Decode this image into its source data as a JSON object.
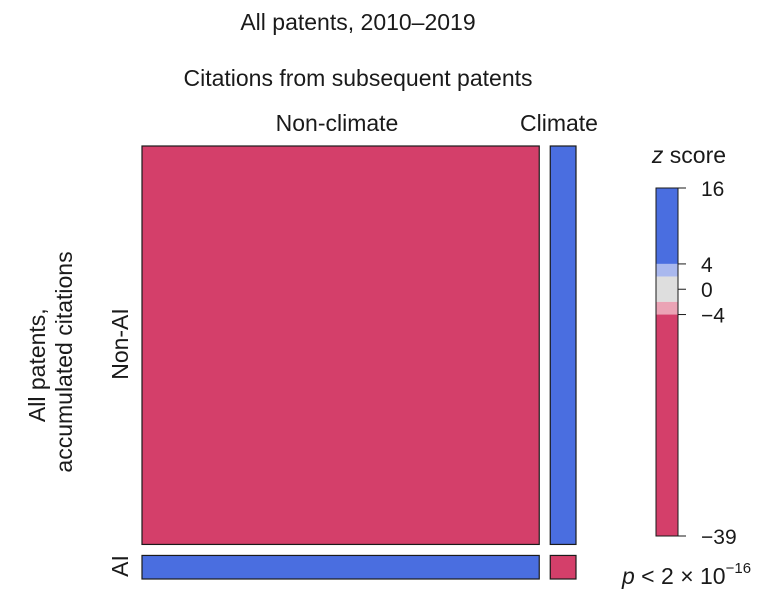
{
  "chart_data": {
    "type": "heatmap",
    "title": "All patents, 2010–2019",
    "x_title": "Citations from subsequent patents",
    "y_title_lines": [
      "All patents,",
      "accumulated citations"
    ],
    "x_categories": [
      "Non-climate",
      "Climate"
    ],
    "y_categories": [
      "Non-AI",
      "AI"
    ],
    "cells": [
      {
        "row": "Non-AI",
        "col": "Non-climate",
        "sign": "negative"
      },
      {
        "row": "Non-AI",
        "col": "Climate",
        "sign": "positive"
      },
      {
        "row": "AI",
        "col": "Non-climate",
        "sign": "positive"
      },
      {
        "row": "AI",
        "col": "Climate",
        "sign": "negative"
      }
    ],
    "proportions": {
      "col_non_climate": 0.935,
      "col_climate": 0.065,
      "row_non_ai": 0.94,
      "row_ai": 0.06
    },
    "colorbar": {
      "label_prefix": "z",
      "label_suffix": " score",
      "min": -39,
      "max": 16,
      "ticks": [
        {
          "value": 16,
          "label": "16"
        },
        {
          "value": 4,
          "label": "4"
        },
        {
          "value": 0,
          "label": "0"
        },
        {
          "value": -4,
          "label": "−4"
        },
        {
          "value": -39,
          "label": "−39"
        }
      ],
      "bands": [
        {
          "from": 4,
          "to": 16,
          "color": "#4a6ee0"
        },
        {
          "from": 2,
          "to": 4,
          "color": "#a9b8ee"
        },
        {
          "from": -2,
          "to": 2,
          "color": "#dedede"
        },
        {
          "from": -4,
          "to": -2,
          "color": "#eba3b5"
        },
        {
          "from": -39,
          "to": -4,
          "color": "#d43f6a"
        }
      ]
    },
    "colors": {
      "positive": "#4a6ee0",
      "negative": "#d43f6a"
    },
    "p_value": {
      "prefix": "p",
      "middle": " < 2 × 10",
      "exponent": "−16"
    }
  }
}
